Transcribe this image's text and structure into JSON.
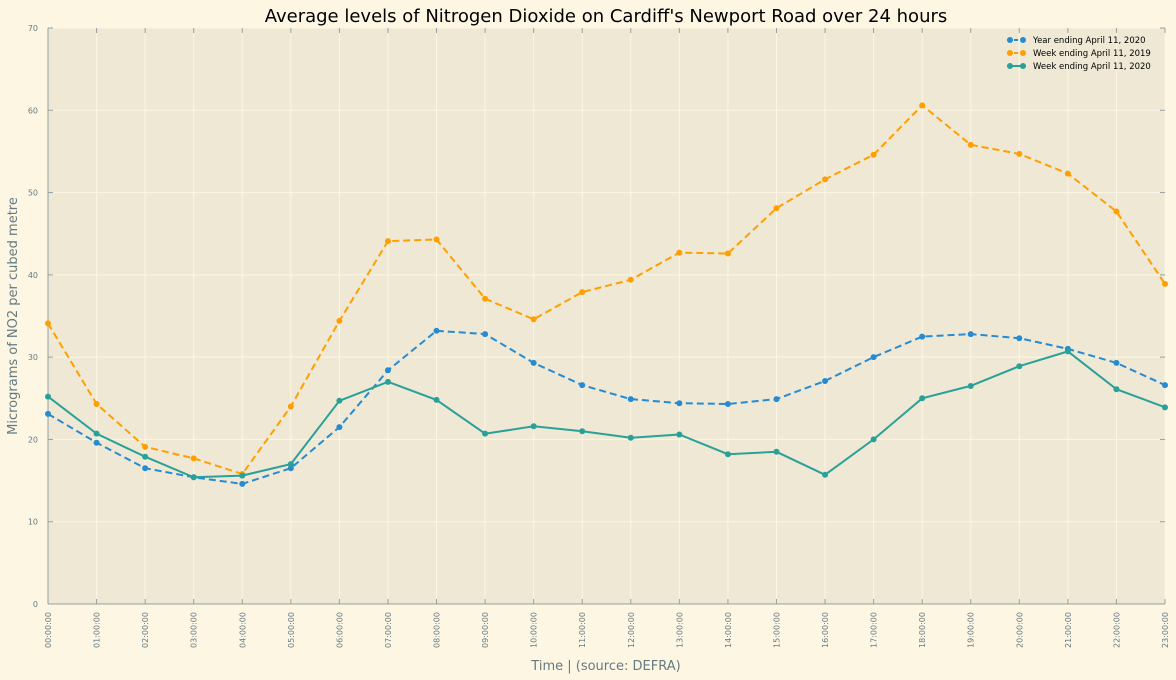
{
  "chart_data": {
    "type": "line",
    "title": "Average levels of Nitrogen Dioxide on Cardiff's Newport Road over 24 hours",
    "xlabel": "Time | (source: DEFRA)",
    "ylabel": "Micrograms of NO2 per cubed metre",
    "x": [
      "00:00:00",
      "01:00:00",
      "02:00:00",
      "03:00:00",
      "04:00:00",
      "05:00:00",
      "06:00:00",
      "07:00:00",
      "08:00:00",
      "09:00:00",
      "10:00:00",
      "11:00:00",
      "12:00:00",
      "13:00:00",
      "14:00:00",
      "15:00:00",
      "16:00:00",
      "17:00:00",
      "18:00:00",
      "19:00:00",
      "20:00:00",
      "21:00:00",
      "22:00:00",
      "23:00:00"
    ],
    "ylim": [
      0,
      70
    ],
    "yticks": [
      0,
      10,
      20,
      30,
      40,
      50,
      60,
      70
    ],
    "grid": true,
    "legend_position": "top-right",
    "series": [
      {
        "name": "Year ending April 11, 2020",
        "color": "#268bd2",
        "dash": "dashed",
        "values": [
          23.1,
          19.6,
          16.5,
          15.4,
          14.6,
          16.5,
          21.5,
          28.4,
          33.2,
          32.8,
          29.3,
          26.6,
          24.9,
          24.4,
          24.3,
          24.9,
          27.1,
          30.0,
          32.5,
          32.8,
          32.3,
          31.0,
          29.3,
          26.6
        ]
      },
      {
        "name": "Week ending April 11, 2019",
        "color": "#ff9f00",
        "dash": "dashed",
        "values": [
          34.1,
          24.3,
          19.1,
          17.7,
          15.8,
          24.0,
          34.4,
          44.1,
          44.3,
          37.1,
          34.6,
          37.9,
          39.4,
          42.7,
          42.6,
          48.1,
          51.6,
          54.6,
          60.6,
          55.8,
          54.7,
          52.3,
          47.7,
          38.9
        ]
      },
      {
        "name": "Week ending April 11, 2020",
        "color": "#2aa198",
        "dash": "solid",
        "values": [
          25.2,
          20.7,
          17.9,
          15.4,
          15.6,
          17.0,
          24.7,
          27.0,
          24.8,
          20.7,
          21.6,
          21.0,
          20.2,
          20.6,
          18.2,
          18.5,
          15.7,
          20.0,
          25.0,
          26.5,
          28.9,
          30.7,
          26.1,
          23.9
        ]
      }
    ]
  }
}
